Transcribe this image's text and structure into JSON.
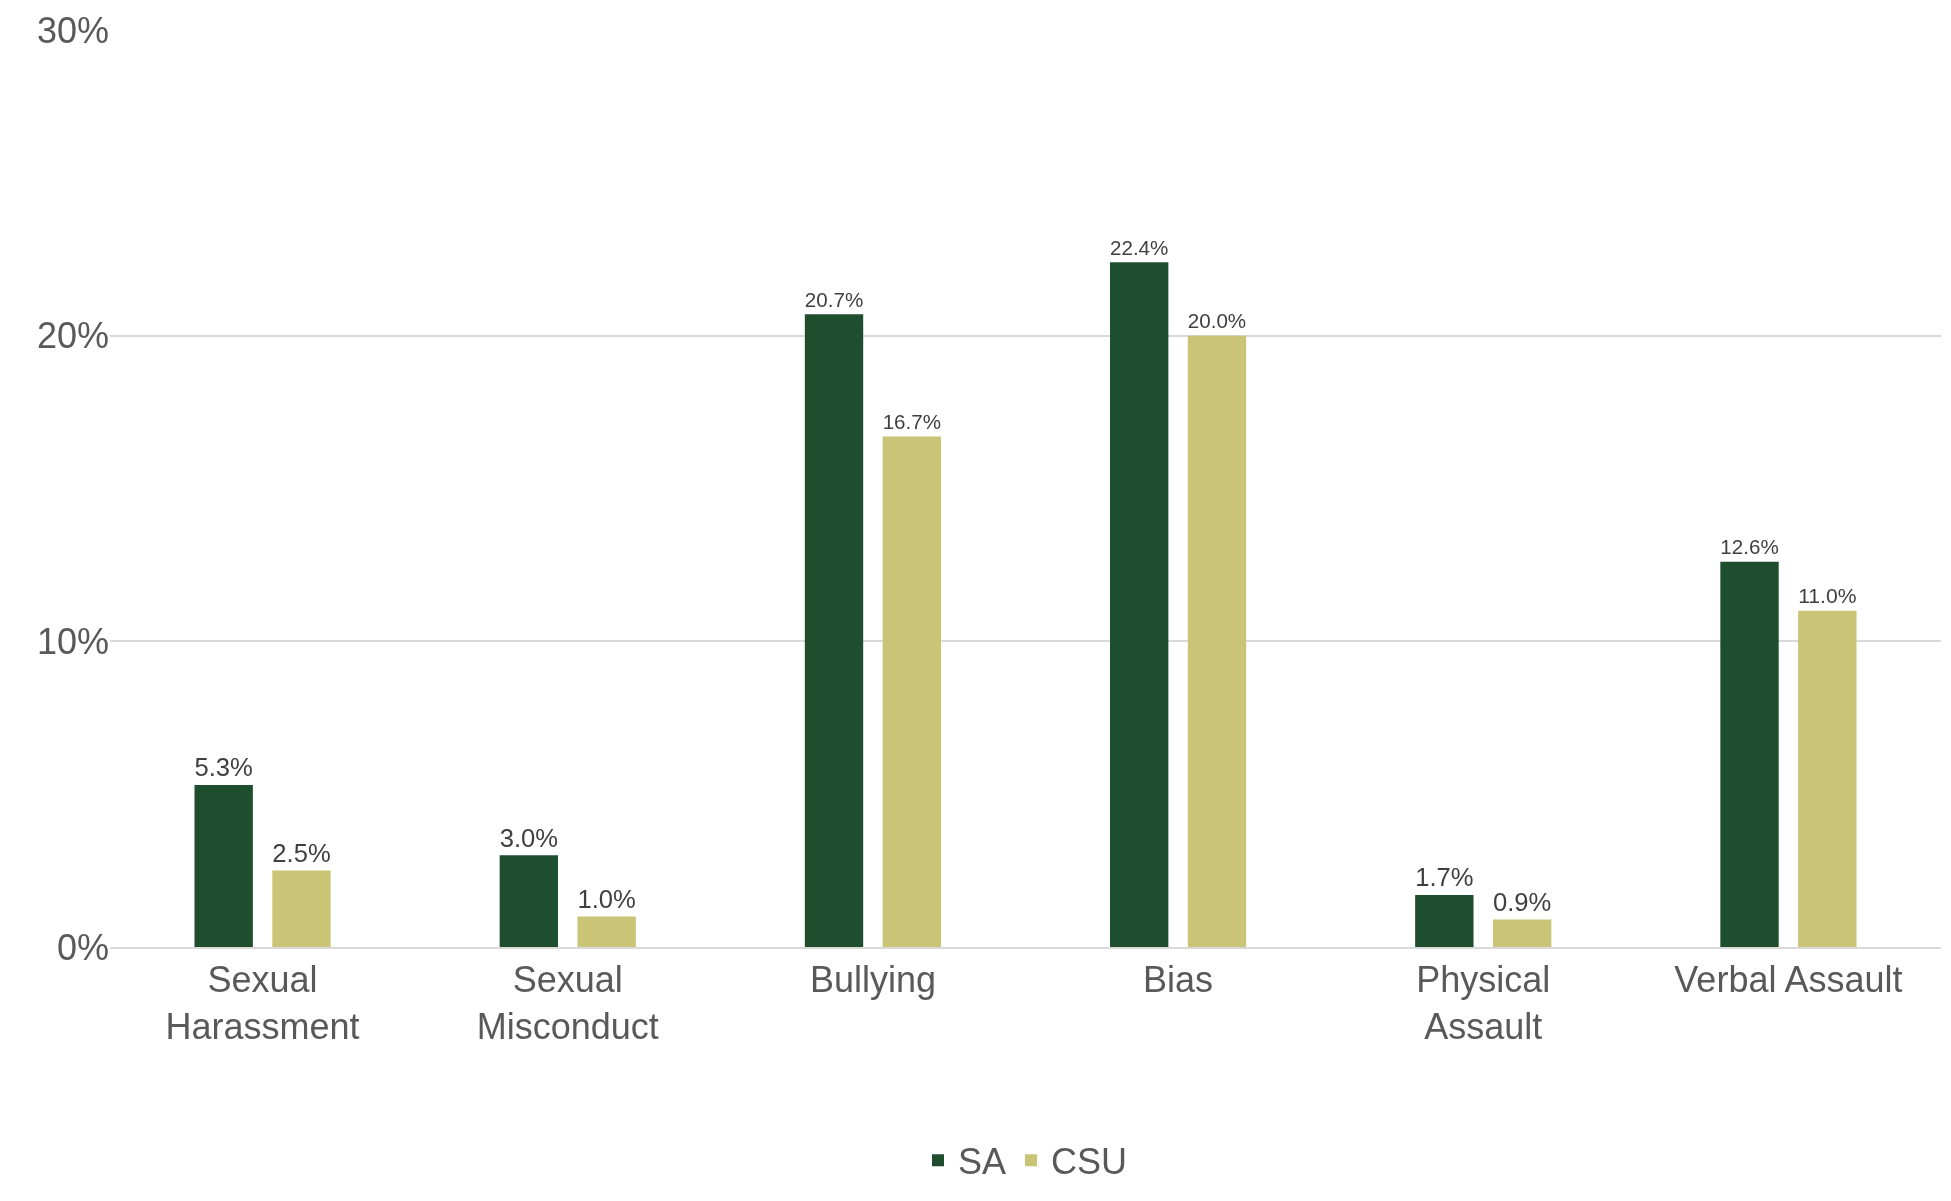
{
  "chart_data": {
    "type": "bar",
    "categories": [
      "Sexual\nHarassment",
      "Sexual\nMisconduct",
      "Bullying",
      "Bias",
      "Physical\nAssault",
      "Verbal Assault"
    ],
    "series": [
      {
        "name": "SA",
        "color": "#1f4e2e",
        "values": [
          5.3,
          3.0,
          20.7,
          22.4,
          1.7,
          12.6
        ],
        "value_labels": [
          "5.3%",
          "3.0%",
          "20.7%",
          "22.4%",
          "1.7%",
          "12.6%"
        ]
      },
      {
        "name": "CSU",
        "color": "#c9c476",
        "values": [
          2.5,
          1.0,
          16.7,
          20.0,
          0.9,
          11.0
        ],
        "value_labels": [
          "2.5%",
          "1.0%",
          "16.7%",
          "20.0%",
          "0.9%",
          "11.0%"
        ]
      }
    ],
    "ylim": [
      0,
      30
    ],
    "yticks": [
      {
        "value": 0,
        "label": "0%"
      },
      {
        "value": 10,
        "label": "10%"
      },
      {
        "value": 20,
        "label": "20%"
      },
      {
        "value": 30,
        "label": "30%"
      }
    ],
    "grid": "y",
    "legend": "bottom"
  }
}
